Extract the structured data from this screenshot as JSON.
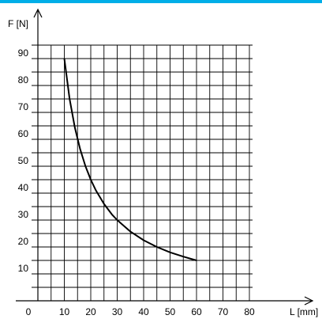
{
  "colors": {
    "accent_bar": "#00aee8",
    "curve": "#000000",
    "grid": "#000000"
  },
  "chart_data": {
    "type": "line",
    "title": "",
    "xlabel": "L [mm]",
    "ylabel": "F [N]",
    "xlim": [
      0,
      80
    ],
    "ylim": [
      0,
      90
    ],
    "grid": true,
    "x_ticks": [
      "0",
      "10",
      "20",
      "30",
      "40",
      "50",
      "60",
      "70",
      "80"
    ],
    "y_ticks": [
      "10",
      "20",
      "30",
      "40",
      "50",
      "60",
      "70",
      "80",
      "90"
    ],
    "series": [
      {
        "x": [
          10,
          12,
          14,
          16,
          18,
          20,
          22,
          25,
          28,
          30,
          35,
          40,
          45,
          50,
          55,
          60
        ],
        "y": [
          90,
          75,
          64.3,
          56.3,
          50,
          45,
          40.9,
          36,
          32.1,
          30,
          25.7,
          22.5,
          20,
          18,
          16.4,
          15
        ]
      }
    ]
  }
}
